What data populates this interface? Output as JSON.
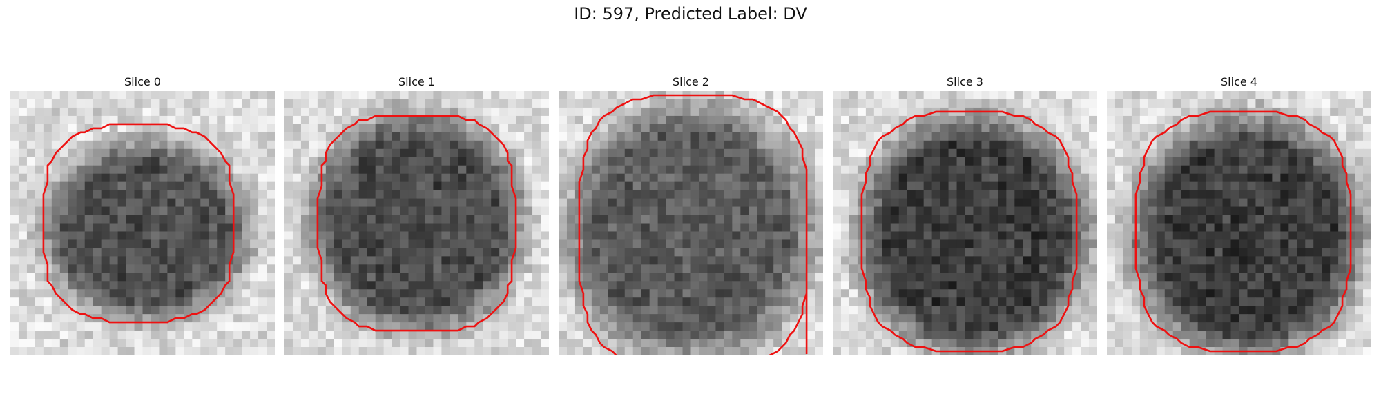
{
  "figure": {
    "title": "ID: 597, Predicted Label: DV"
  },
  "colors": {
    "contour": "#ee1111",
    "background": "#ffffff"
  },
  "slices": [
    {
      "title": "Slice 0"
    },
    {
      "title": "Slice 1"
    },
    {
      "title": "Slice 2"
    },
    {
      "title": "Slice 3"
    },
    {
      "title": "Slice 4"
    }
  ]
}
